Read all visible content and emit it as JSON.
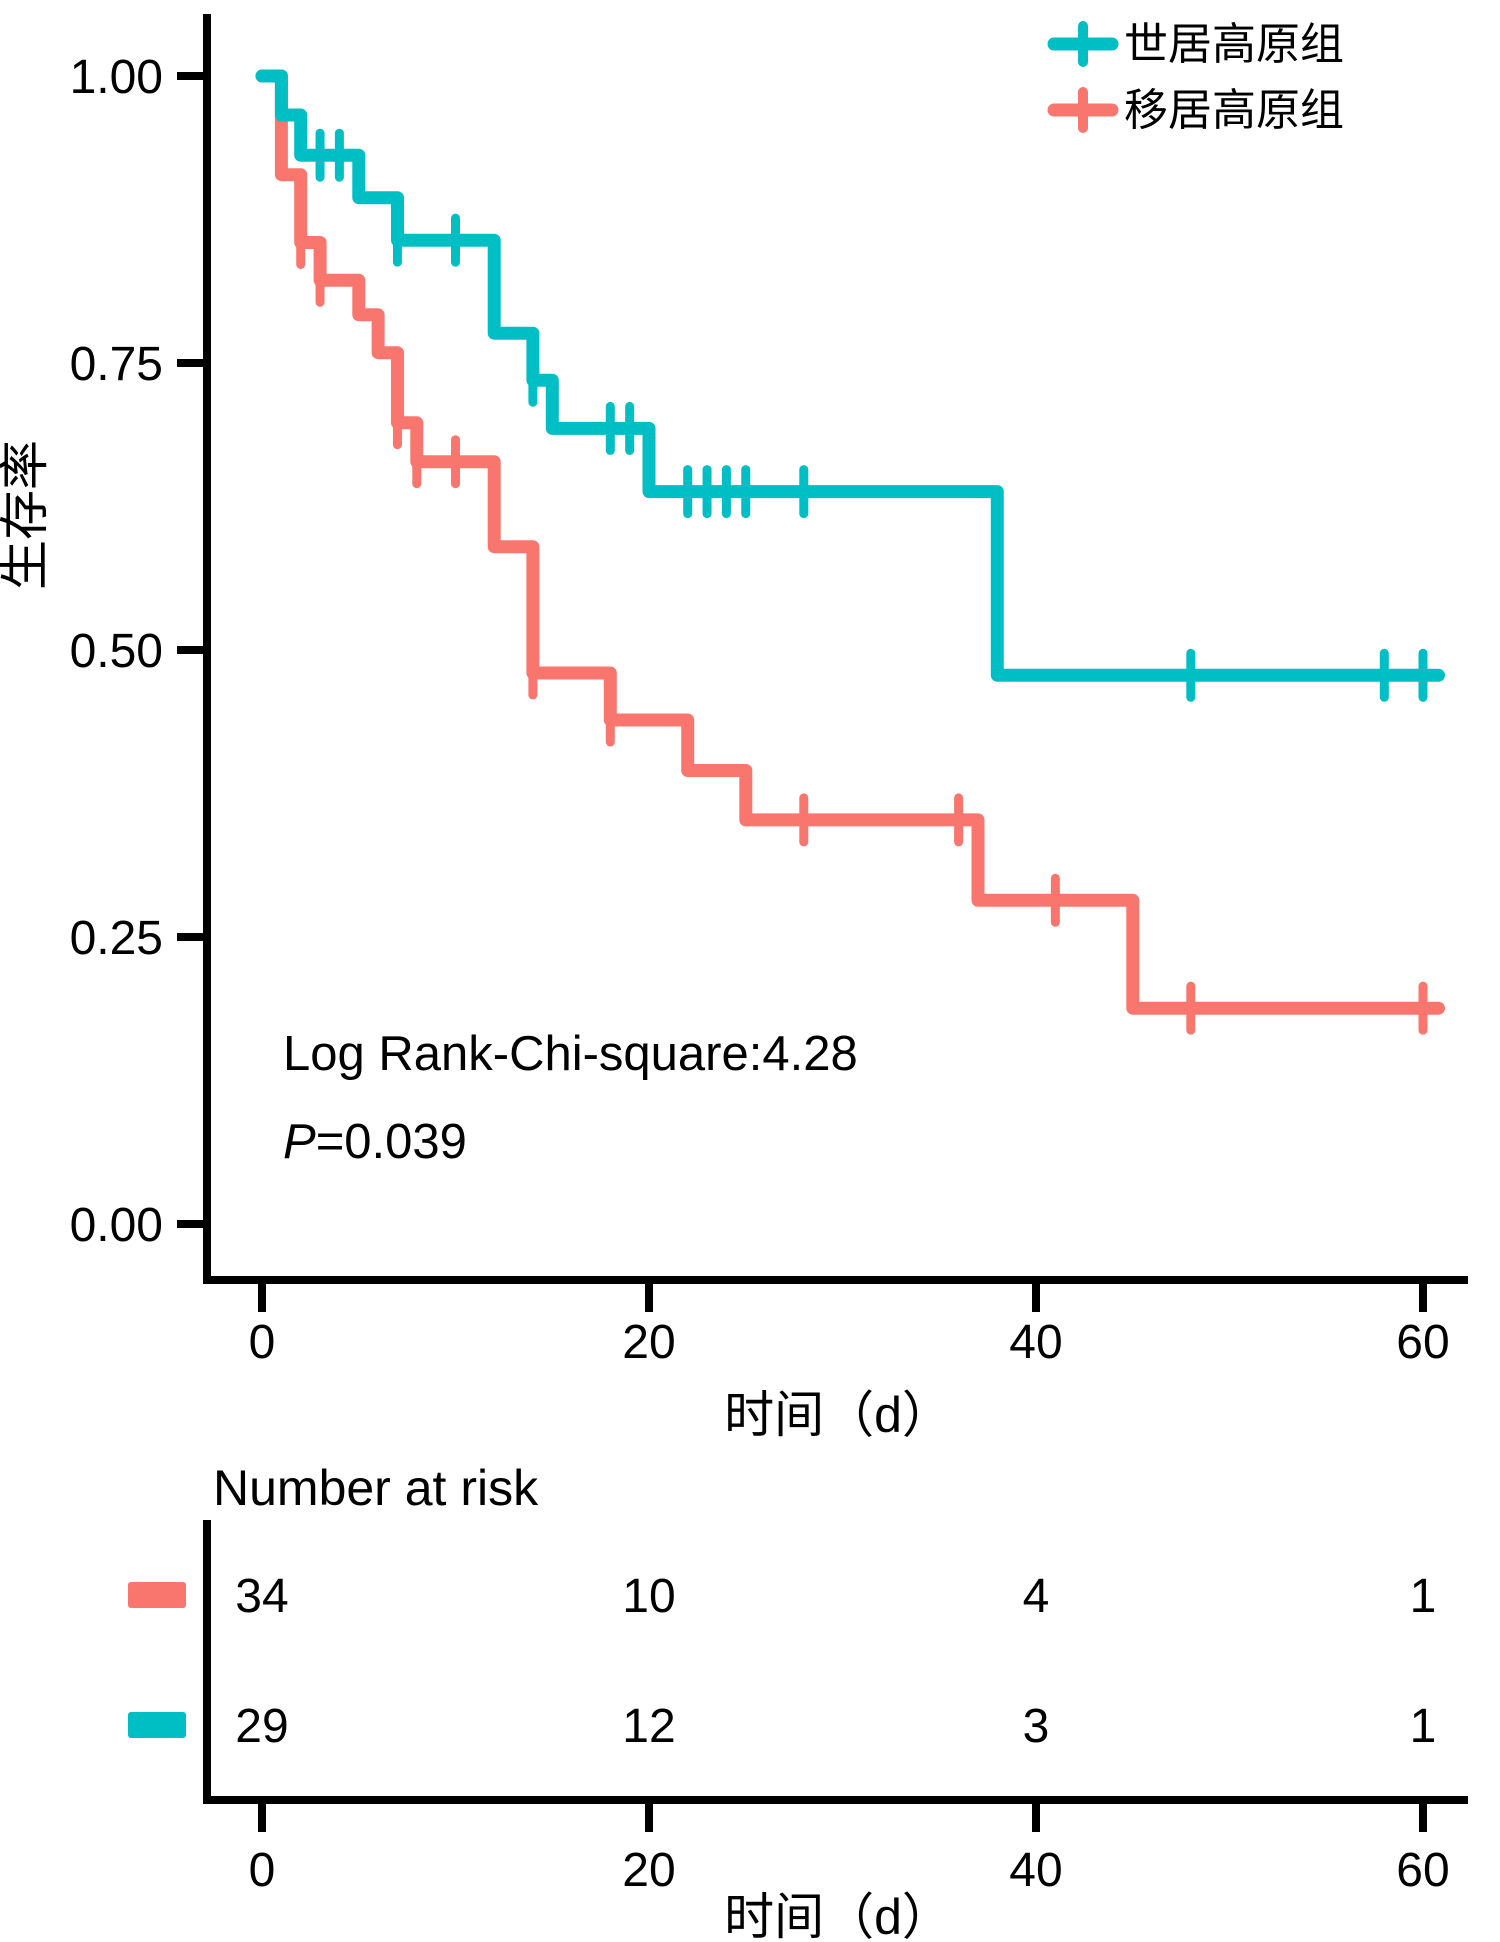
{
  "axes": {
    "x_label": "时间（d）",
    "y_label": "生存率",
    "x_ticks": [
      "0",
      "20",
      "40",
      "60"
    ],
    "y_ticks": [
      "1.00",
      "0.75",
      "0.50",
      "0.25",
      "0.00"
    ]
  },
  "legend": {
    "items": [
      {
        "label": "世居高原组",
        "color": "#00BFC4"
      },
      {
        "label": "移居高原组",
        "color": "#F8766D"
      }
    ]
  },
  "annotations": {
    "logrank": "Log Rank-Chi-square:4.28",
    "p_label": "P",
    "p_value": "=0.039"
  },
  "risk_table": {
    "title": "Number at risk",
    "x_label": "时间（d）",
    "x_ticks": [
      "0",
      "20",
      "40",
      "60"
    ],
    "rows": [
      {
        "color": "#F8766D",
        "group": "移居高原组",
        "values": [
          "34",
          "10",
          "4",
          "1"
        ]
      },
      {
        "color": "#00BFC4",
        "group": "世居高原组",
        "values": [
          "29",
          "12",
          "3",
          "1"
        ]
      }
    ]
  },
  "chart_data": {
    "type": "line",
    "subtype": "kaplan-meier-step",
    "title": "",
    "xlabel": "时间（d）",
    "ylabel": "生存率",
    "xlim": [
      0,
      62
    ],
    "ylim": [
      0,
      1.0
    ],
    "x_ticks": [
      0,
      20,
      40,
      60
    ],
    "y_ticks": [
      1.0,
      0.75,
      0.5,
      0.25,
      0.0
    ],
    "grid": false,
    "legend_position": "top-right",
    "annotations": [
      "Log Rank-Chi-square:4.28",
      "P=0.039"
    ],
    "series": [
      {
        "name": "世居高原组",
        "color": "#00BFC4",
        "n_at_risk_times": [
          0,
          20,
          40,
          60
        ],
        "n_at_risk": [
          29,
          12,
          3,
          1
        ],
        "end_time": 60.8,
        "steps": [
          [
            0,
            1.0
          ],
          [
            1,
            0.966
          ],
          [
            2,
            0.931
          ],
          [
            5,
            0.894
          ],
          [
            7,
            0.857
          ],
          [
            12,
            0.776
          ],
          [
            14,
            0.735
          ],
          [
            15,
            0.693
          ],
          [
            20,
            0.638
          ],
          [
            38,
            0.478
          ]
        ],
        "censor_marks": [
          [
            3,
            0.931
          ],
          [
            4,
            0.931
          ],
          [
            7,
            0.857
          ],
          [
            10,
            0.857
          ],
          [
            14,
            0.735
          ],
          [
            18,
            0.693
          ],
          [
            19,
            0.693
          ],
          [
            22,
            0.638
          ],
          [
            23,
            0.638
          ],
          [
            24,
            0.638
          ],
          [
            25,
            0.638
          ],
          [
            28,
            0.638
          ],
          [
            48,
            0.478
          ],
          [
            58,
            0.478
          ],
          [
            60,
            0.478
          ]
        ]
      },
      {
        "name": "移居高原组",
        "color": "#F8766D",
        "n_at_risk_times": [
          0,
          20,
          40,
          60
        ],
        "n_at_risk": [
          34,
          10,
          4,
          1
        ],
        "end_time": 60.8,
        "steps": [
          [
            0,
            1.0
          ],
          [
            1,
            0.914
          ],
          [
            2,
            0.855
          ],
          [
            3,
            0.822
          ],
          [
            5,
            0.792
          ],
          [
            6,
            0.759
          ],
          [
            7,
            0.698
          ],
          [
            8,
            0.664
          ],
          [
            12,
            0.59
          ],
          [
            14,
            0.48
          ],
          [
            18,
            0.439
          ],
          [
            22,
            0.395
          ],
          [
            25,
            0.352
          ],
          [
            37,
            0.282
          ],
          [
            45,
            0.188
          ]
        ],
        "censor_marks": [
          [
            2,
            0.855
          ],
          [
            3,
            0.822
          ],
          [
            7,
            0.698
          ],
          [
            8,
            0.664
          ],
          [
            10,
            0.664
          ],
          [
            14,
            0.48
          ],
          [
            18,
            0.439
          ],
          [
            28,
            0.352
          ],
          [
            36,
            0.352
          ],
          [
            41,
            0.282
          ],
          [
            48,
            0.188
          ],
          [
            60,
            0.188
          ]
        ]
      }
    ]
  }
}
